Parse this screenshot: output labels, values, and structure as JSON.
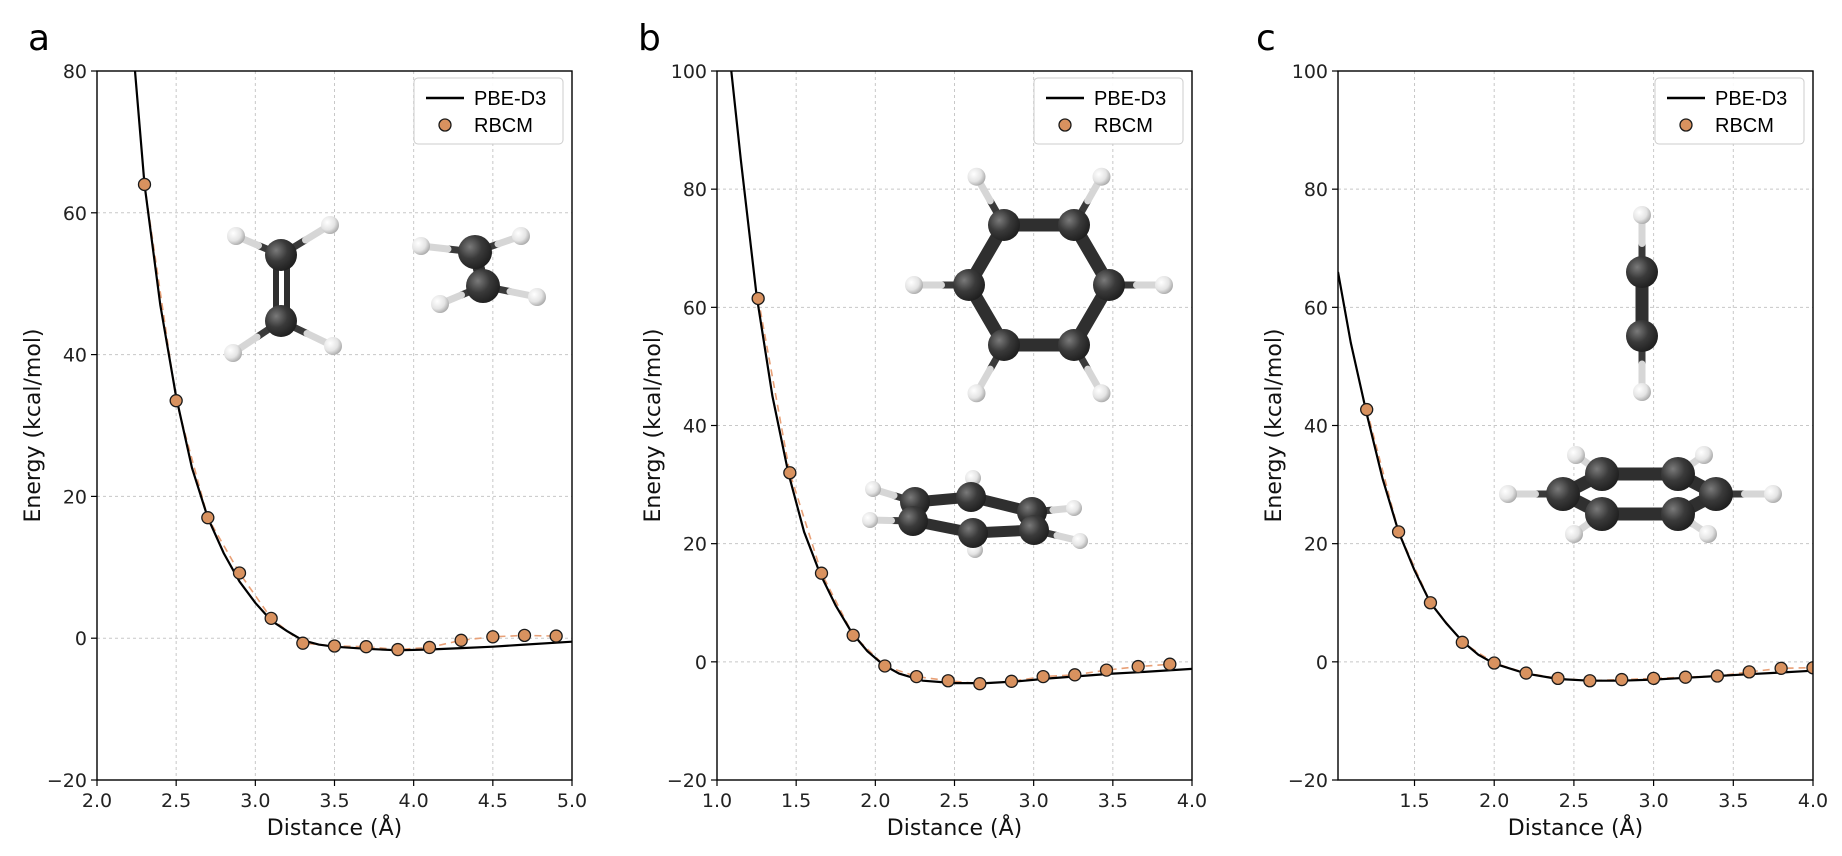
{
  "colors": {
    "pbe_line": "#000000",
    "rbcm_marker": "#d9925f",
    "rbcm_dashed": "#e8a077",
    "grid": "#c8c8c8",
    "carbon": "#3a3a3a",
    "hydrogen": "#e6e6e6"
  },
  "chart_data": [
    {
      "panel": "a",
      "type": "line",
      "xlabel": "Distance (Å)",
      "ylabel": "Energy (kcal/mol)",
      "xlim": [
        2.0,
        5.0
      ],
      "ylim": [
        -20,
        80
      ],
      "xticks": [
        2.0,
        2.5,
        3.0,
        3.5,
        4.0,
        4.5,
        5.0
      ],
      "xtick_labels": [
        "2.0",
        "2.5",
        "3.0",
        "3.5",
        "4.0",
        "4.5",
        "5.0"
      ],
      "yticks": [
        -20,
        0,
        20,
        40,
        60,
        80
      ],
      "ytick_labels": [
        "−20",
        "0",
        "20",
        "40",
        "60",
        "80"
      ],
      "grid": true,
      "legend": {
        "position": "top-right",
        "entries": [
          "PBE-D3",
          "RBCM"
        ]
      },
      "series": [
        {
          "name": "PBE-D3",
          "style": "solid",
          "x": [
            2.24,
            2.3,
            2.4,
            2.5,
            2.6,
            2.7,
            2.8,
            2.9,
            3.0,
            3.1,
            3.2,
            3.3,
            3.4,
            3.5,
            3.7,
            3.9,
            4.1,
            4.3,
            4.5,
            4.7,
            5.0
          ],
          "y": [
            80,
            64,
            47,
            34,
            24,
            17,
            12,
            8,
            5,
            2.5,
            1.0,
            -0.3,
            -0.9,
            -1.2,
            -1.5,
            -1.7,
            -1.6,
            -1.4,
            -1.2,
            -0.9,
            -0.5
          ]
        },
        {
          "name": "RBCM",
          "style": "markers",
          "x": [
            2.3,
            2.5,
            2.7,
            2.9,
            3.1,
            3.3,
            3.5,
            3.7,
            3.9,
            4.1,
            4.3,
            4.5,
            4.7,
            4.9
          ],
          "y": [
            64,
            33.5,
            17,
            9.2,
            2.8,
            -0.7,
            -1.1,
            -1.2,
            -1.6,
            -1.3,
            -0.3,
            0.2,
            0.4,
            0.3
          ]
        }
      ]
    },
    {
      "panel": "b",
      "type": "line",
      "xlabel": "Distance (Å)",
      "ylabel": "Energy (kcal/mol)",
      "xlim": [
        1.0,
        4.0
      ],
      "ylim": [
        -20,
        100
      ],
      "xticks": [
        1.0,
        1.5,
        2.0,
        2.5,
        3.0,
        3.5,
        4.0
      ],
      "xtick_labels": [
        "1.0",
        "1.5",
        "2.0",
        "2.5",
        "3.0",
        "3.5",
        "4.0"
      ],
      "yticks": [
        -20,
        0,
        20,
        40,
        60,
        80,
        100
      ],
      "ytick_labels": [
        "−20",
        "0",
        "20",
        "40",
        "60",
        "80",
        "100"
      ],
      "grid": true,
      "legend": {
        "position": "top-right",
        "entries": [
          "PBE-D3",
          "RBCM"
        ]
      },
      "series": [
        {
          "name": "PBE-D3",
          "style": "solid",
          "x": [
            1.09,
            1.15,
            1.25,
            1.35,
            1.45,
            1.55,
            1.65,
            1.75,
            1.85,
            1.95,
            2.05,
            2.15,
            2.3,
            2.5,
            2.7,
            2.9,
            3.1,
            3.3,
            3.5,
            3.7,
            4.0
          ],
          "y": [
            100,
            85,
            62,
            45,
            32,
            22,
            15,
            9.5,
            5,
            1.8,
            -0.5,
            -2,
            -3.2,
            -3.6,
            -3.6,
            -3.3,
            -2.8,
            -2.4,
            -2.0,
            -1.7,
            -1.2
          ]
        },
        {
          "name": "RBCM",
          "style": "markers",
          "x": [
            1.26,
            1.46,
            1.66,
            1.86,
            2.06,
            2.26,
            2.46,
            2.66,
            2.86,
            3.06,
            3.26,
            3.46,
            3.66,
            3.86
          ],
          "y": [
            61.5,
            32,
            15,
            4.5,
            -0.7,
            -2.5,
            -3.2,
            -3.7,
            -3.3,
            -2.5,
            -2.2,
            -1.4,
            -0.8,
            -0.4
          ]
        }
      ]
    },
    {
      "panel": "c",
      "type": "line",
      "xlabel": "Distance (Å)",
      "ylabel": "Energy (kcal/mol)",
      "xlim": [
        1.02,
        4.0
      ],
      "ylim": [
        -20,
        100
      ],
      "xticks": [
        1.5,
        2.0,
        2.5,
        3.0,
        3.5,
        4.0
      ],
      "xtick_labels": [
        "1.5",
        "2.0",
        "2.5",
        "3.0",
        "3.5",
        "4.0"
      ],
      "yticks": [
        -20,
        0,
        20,
        40,
        60,
        80,
        100
      ],
      "ytick_labels": [
        "−20",
        "0",
        "20",
        "40",
        "60",
        "80",
        "100"
      ],
      "grid": true,
      "legend": {
        "position": "top-right",
        "entries": [
          "PBE-D3",
          "RBCM"
        ]
      },
      "series": [
        {
          "name": "PBE-D3",
          "style": "solid",
          "x": [
            1.02,
            1.1,
            1.2,
            1.3,
            1.4,
            1.5,
            1.6,
            1.7,
            1.8,
            1.9,
            2.0,
            2.2,
            2.4,
            2.6,
            2.8,
            3.0,
            3.2,
            3.4,
            3.6,
            3.8,
            4.0
          ],
          "y": [
            66,
            54,
            42,
            31,
            22,
            15.5,
            10,
            6.5,
            3.5,
            1.2,
            -0.3,
            -2.0,
            -2.9,
            -3.2,
            -3.2,
            -3.0,
            -2.7,
            -2.4,
            -2.1,
            -1.8,
            -1.5
          ]
        },
        {
          "name": "RBCM",
          "style": "markers",
          "x": [
            1.2,
            1.4,
            1.6,
            1.8,
            2.0,
            2.2,
            2.4,
            2.6,
            2.8,
            3.0,
            3.2,
            3.4,
            3.6,
            3.8,
            4.0
          ],
          "y": [
            42.7,
            22,
            10,
            3.3,
            -0.2,
            -1.9,
            -2.8,
            -3.2,
            -3.0,
            -2.8,
            -2.6,
            -2.4,
            -1.7,
            -1.1,
            -1.0
          ]
        }
      ]
    }
  ]
}
